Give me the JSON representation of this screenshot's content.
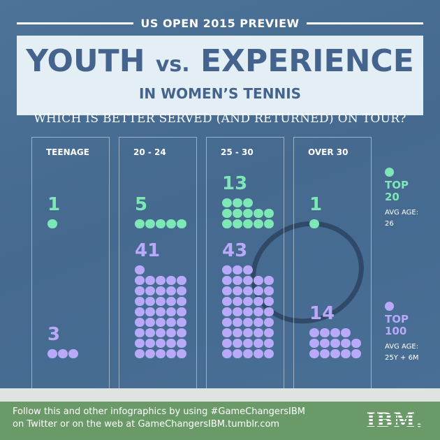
{
  "header": {
    "kicker": "US OPEN 2015 PREVIEW",
    "title_a": "YOUTH",
    "title_vs": "vs.",
    "title_b": "EXPERIENCE",
    "subtitle": "IN WOMEN’S TENNIS",
    "question": "WHICH IS BETTER SERVED (AND RETURNED) ON TOUR?"
  },
  "legend": [
    {
      "label_a": "TOP",
      "label_b": "20",
      "avg_label": "AVG AGE:",
      "avg_value": "26",
      "color": "#7de8b6"
    },
    {
      "label_a": "TOP",
      "label_b": "100",
      "avg_label": "AVG AGE:",
      "avg_value": "25Y + 6M",
      "color": "#b8aaf8"
    }
  ],
  "footer": {
    "line1": "Follow this and other infographics by using #GameChangersIBM",
    "line2": "on Twitter or on the web at GameChangersIBM.tumblr.com",
    "logo": "IBM."
  },
  "chart_data": {
    "type": "pictograph",
    "categories": [
      "TEENAGE",
      "20 - 24",
      "25 - 30",
      "OVER 30"
    ],
    "series": [
      {
        "name": "TOP 20",
        "values": [
          1,
          5,
          13,
          1
        ],
        "color": "#7de8b6"
      },
      {
        "name": "TOP 100",
        "values": [
          3,
          41,
          43,
          14
        ],
        "color": "#b8aaf8"
      }
    ],
    "labels": [
      [
        "1",
        "5",
        "13",
        "1"
      ],
      [
        "3",
        "41",
        "43",
        "14"
      ]
    ]
  }
}
